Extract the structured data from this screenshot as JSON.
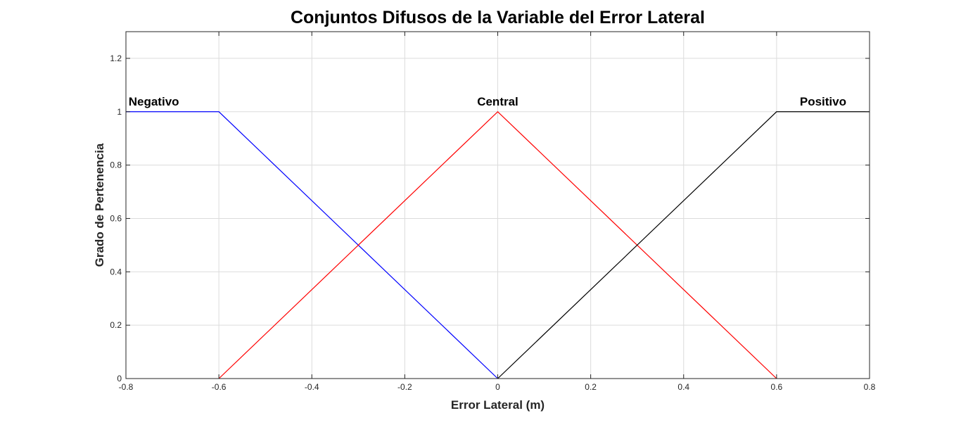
{
  "chart_data": {
    "type": "line",
    "title": "Conjuntos Difusos de la Variable del Error Lateral",
    "xlabel": "Error Lateral (m)",
    "ylabel": "Grado de Pertenencia",
    "xlim": [
      -0.8,
      0.8
    ],
    "ylim": [
      0,
      1.3
    ],
    "xticks": [
      -0.8,
      -0.6,
      -0.4,
      -0.2,
      0,
      0.2,
      0.4,
      0.6,
      0.8
    ],
    "xtick_labels": [
      "-0.8",
      "-0.6",
      "-0.4",
      "-0.2",
      "0",
      "0.2",
      "0.4",
      "0.6",
      "0.8"
    ],
    "yticks": [
      0,
      0.2,
      0.4,
      0.6,
      0.8,
      1,
      1.2
    ],
    "ytick_labels": [
      "0",
      "0.2",
      "0.4",
      "0.6",
      "0.8",
      "1",
      "1.2"
    ],
    "grid": true,
    "series": [
      {
        "color": "#0000ff",
        "x": [
          -0.8,
          -0.6,
          0
        ],
        "y": [
          1,
          1,
          0
        ]
      },
      {
        "color": "#ff0000",
        "x": [
          -0.6,
          0,
          0.6
        ],
        "y": [
          0,
          1,
          0
        ]
      },
      {
        "color": "#000000",
        "x": [
          0,
          0.6,
          0.8
        ],
        "y": [
          0,
          1,
          1
        ]
      }
    ],
    "annotations": [
      {
        "text": "Negativo",
        "x": -0.74,
        "y": 1.02
      },
      {
        "text": "Central",
        "x": 0,
        "y": 1.02
      },
      {
        "text": "Positivo",
        "x": 0.7,
        "y": 1.02
      }
    ]
  }
}
